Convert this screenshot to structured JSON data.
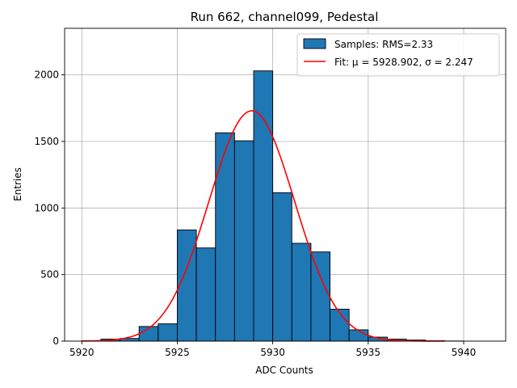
{
  "chart_data": {
    "type": "bar",
    "title": "Run 662, channel099, Pedestal",
    "xlabel": "ADC Counts",
    "ylabel": "Entries",
    "xlim": [
      5919.1,
      5942.2
    ],
    "ylim": [
      0,
      2350
    ],
    "xticks": [
      5920,
      5925,
      5930,
      5935,
      5940
    ],
    "yticks": [
      0,
      500,
      1000,
      1500,
      2000
    ],
    "grid": true,
    "bin_edges": [
      5920,
      5921,
      5922,
      5923,
      5924,
      5925,
      5926,
      5927,
      5928,
      5929,
      5930,
      5931,
      5932,
      5933,
      5934,
      5935,
      5936,
      5937,
      5938,
      5939,
      5940,
      5941
    ],
    "bar_color": "#1f77b4",
    "fit_color": "#ff0000",
    "series": [
      {
        "name": "Samples",
        "legend": "Samples: RMS=2.33",
        "values": [
          2,
          15,
          20,
          110,
          130,
          835,
          700,
          1565,
          1505,
          2030,
          1115,
          735,
          670,
          240,
          85,
          30,
          15,
          8,
          3,
          1,
          0
        ]
      },
      {
        "name": "Fit",
        "legend": "Fit: μ = 5928.902, σ = 2.247",
        "type": "line",
        "mu": 5928.902,
        "sigma": 2.247,
        "amplitude": 1730,
        "x_range": [
          5920,
          5939
        ]
      }
    ],
    "legend_position": "upper right"
  }
}
